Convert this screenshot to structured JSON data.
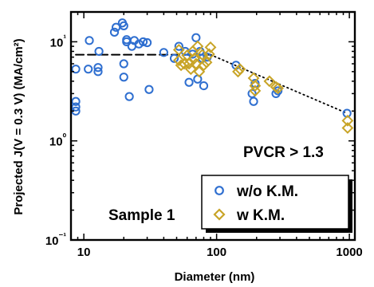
{
  "chart_data": {
    "type": "scatter",
    "xlabel": "Diameter (nm)",
    "ylabel": "Projected J(V = 0.3 V) (MA/cm²)",
    "x_scale": "log",
    "y_scale": "log",
    "xlim": [
      8,
      1100
    ],
    "ylim": [
      0.1,
      20
    ],
    "x_ticks": [
      10,
      100,
      1000
    ],
    "x_tick_labels": [
      "10",
      "100",
      "1000"
    ],
    "y_ticks": [
      0.1,
      1,
      10
    ],
    "y_tick_labels": [
      "10⁻¹",
      "10⁰",
      "10¹"
    ],
    "grid": false,
    "legend_position": "bottom-right",
    "annotations": [
      "PVCR > 1.3",
      "Sample 1"
    ],
    "series": [
      {
        "name": "w/o K.M.",
        "marker": "circle",
        "color": "#2f6fd0",
        "points": [
          [
            8.7,
            2.0
          ],
          [
            8.7,
            2.2
          ],
          [
            8.7,
            2.5
          ],
          [
            8.7,
            5.3
          ],
          [
            10.8,
            5.3
          ],
          [
            11.0,
            10.3
          ],
          [
            12.8,
            5.0
          ],
          [
            12.8,
            5.5
          ],
          [
            13.0,
            8.0
          ],
          [
            17,
            12.5
          ],
          [
            17.5,
            14.0
          ],
          [
            19.5,
            15.5
          ],
          [
            20,
            14.5
          ],
          [
            20,
            6.0
          ],
          [
            20,
            4.4
          ],
          [
            21,
            10.5
          ],
          [
            21,
            10.0
          ],
          [
            22,
            2.8
          ],
          [
            23,
            9.0
          ],
          [
            24,
            10.3
          ],
          [
            26,
            9.5
          ],
          [
            28,
            10.0
          ],
          [
            30,
            9.8
          ],
          [
            31,
            3.3
          ],
          [
            40,
            7.8
          ],
          [
            48,
            6.8
          ],
          [
            52,
            9.0
          ],
          [
            58,
            8.0
          ],
          [
            62,
            3.9
          ],
          [
            66,
            7.5
          ],
          [
            70,
            11.0
          ],
          [
            72,
            4.2
          ],
          [
            75,
            8.0
          ],
          [
            78,
            6.8
          ],
          [
            80,
            3.6
          ],
          [
            85,
            7.0
          ],
          [
            140,
            5.8
          ],
          [
            185,
            3.0
          ],
          [
            190,
            2.5
          ],
          [
            195,
            3.8
          ],
          [
            280,
            3.0
          ],
          [
            290,
            3.2
          ],
          [
            960,
            1.9
          ]
        ]
      },
      {
        "name": "w K.M.",
        "marker": "diamond",
        "color": "#c8a427",
        "points": [
          [
            52,
            6.5
          ],
          [
            52,
            8.3
          ],
          [
            54,
            5.8
          ],
          [
            57,
            6.0
          ],
          [
            60,
            7.3
          ],
          [
            62,
            6.0
          ],
          [
            64,
            5.3
          ],
          [
            66,
            8.0
          ],
          [
            68,
            6.8
          ],
          [
            70,
            6.0
          ],
          [
            72,
            9.0
          ],
          [
            74,
            5.0
          ],
          [
            78,
            7.4
          ],
          [
            80,
            5.8
          ],
          [
            84,
            6.2
          ],
          [
            88,
            7.5
          ],
          [
            90,
            8.8
          ],
          [
            145,
            5.0
          ],
          [
            150,
            5.3
          ],
          [
            190,
            4.3
          ],
          [
            195,
            3.6
          ],
          [
            195,
            3.2
          ],
          [
            250,
            4.0
          ],
          [
            280,
            3.5
          ],
          [
            290,
            3.4
          ],
          [
            970,
            1.6
          ],
          [
            970,
            1.35
          ]
        ]
      }
    ],
    "reference_lines": [
      {
        "style": "dashed",
        "points": [
          [
            8.7,
            7.4
          ],
          [
            90,
            7.4
          ]
        ]
      },
      {
        "style": "dotted",
        "points": [
          [
            90,
            7.4
          ],
          [
            960,
            1.9
          ]
        ]
      }
    ]
  }
}
